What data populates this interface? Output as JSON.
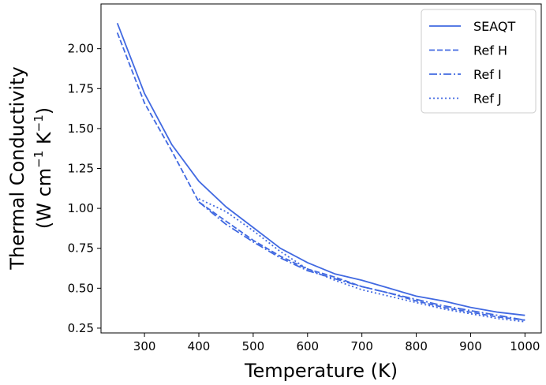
{
  "chart_data": {
    "type": "line",
    "xlabel": "Temperature (K)",
    "ylabel_line1": "Thermal Conductivity",
    "ylabel_line2_prefix": "(W cm",
    "ylabel_line2_exp1": "−1",
    "ylabel_line2_mid": " K",
    "ylabel_line2_exp2": "−1",
    "ylabel_line2_suffix": ")",
    "xlim": [
      220,
      1030
    ],
    "ylim": [
      0.22,
      2.28
    ],
    "xticks": [
      300,
      400,
      500,
      600,
      700,
      800,
      900,
      1000
    ],
    "yticks": [
      0.25,
      0.5,
      0.75,
      1.0,
      1.25,
      1.5,
      1.75,
      2.0
    ],
    "ytick_labels": [
      "0.25",
      "0.50",
      "0.75",
      "1.00",
      "1.25",
      "1.50",
      "1.75",
      "2.00"
    ],
    "color": "#4169e1",
    "legend_position": "top-right",
    "series": [
      {
        "name": "SEAQT",
        "style": "solid",
        "x": [
          250,
          300,
          350,
          400,
          450,
          500,
          550,
          600,
          650,
          700,
          750,
          800,
          850,
          900,
          950,
          1000
        ],
        "y": [
          2.16,
          1.72,
          1.4,
          1.17,
          1.01,
          0.88,
          0.75,
          0.66,
          0.59,
          0.55,
          0.5,
          0.45,
          0.42,
          0.38,
          0.35,
          0.33
        ]
      },
      {
        "name": "Ref H",
        "style": "dashed",
        "x": [
          250,
          300,
          350,
          400,
          450,
          500,
          550,
          600,
          650,
          700,
          750,
          800,
          850,
          900,
          950,
          1000
        ],
        "y": [
          2.1,
          1.66,
          1.36,
          1.04,
          0.92,
          0.8,
          0.7,
          0.62,
          0.57,
          0.51,
          0.47,
          0.42,
          0.38,
          0.35,
          0.32,
          0.3
        ]
      },
      {
        "name": "Ref I",
        "style": "dashdot",
        "x": [
          400,
          450,
          500,
          550,
          600,
          650,
          700,
          750,
          800,
          850,
          900,
          950,
          1000
        ],
        "y": [
          1.04,
          0.9,
          0.79,
          0.69,
          0.61,
          0.56,
          0.51,
          0.47,
          0.43,
          0.39,
          0.36,
          0.33,
          0.3
        ]
      },
      {
        "name": "Ref J",
        "style": "dotted",
        "x": [
          400,
          450,
          500,
          550,
          600,
          650,
          700,
          750,
          800,
          850,
          900,
          950,
          1000
        ],
        "y": [
          1.06,
          0.98,
          0.86,
          0.73,
          0.62,
          0.55,
          0.49,
          0.45,
          0.41,
          0.37,
          0.34,
          0.31,
          0.29
        ]
      }
    ]
  }
}
